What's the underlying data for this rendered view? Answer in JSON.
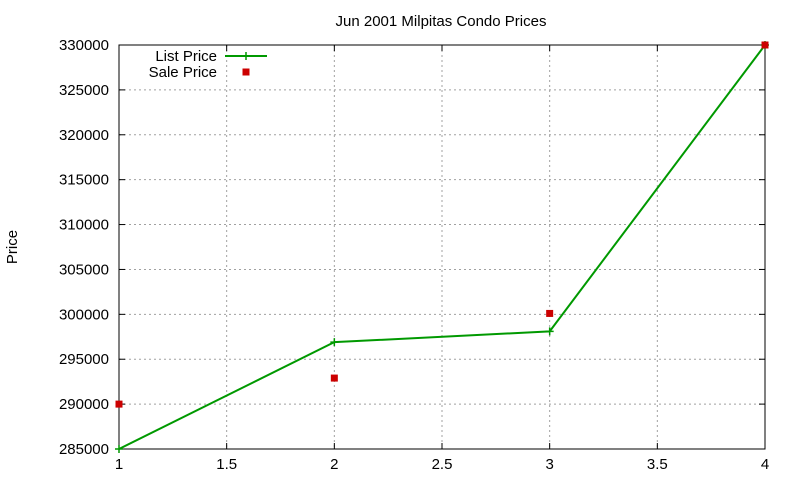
{
  "chart_data": {
    "type": "line",
    "title": "Jun 2001 Milpitas Condo Prices",
    "xlabel": "",
    "ylabel": "Price",
    "xlim": [
      1,
      4
    ],
    "ylim": [
      285000,
      330000
    ],
    "x_ticks": [
      1,
      1.5,
      2,
      2.5,
      3,
      3.5,
      4
    ],
    "x_tick_labels": [
      "1",
      "1.5",
      "2",
      "2.5",
      "3",
      "3.5",
      "4"
    ],
    "y_ticks": [
      285000,
      290000,
      295000,
      300000,
      305000,
      310000,
      315000,
      320000,
      325000,
      330000
    ],
    "y_tick_labels": [
      "285000",
      "290000",
      "295000",
      "300000",
      "305000",
      "310000",
      "315000",
      "320000",
      "325000",
      "330000"
    ],
    "grid": true,
    "legend_position": "top-left",
    "series": [
      {
        "name": "List Price",
        "style": "linespoints",
        "marker": "plus",
        "color": "#009900",
        "x": [
          1,
          2,
          3,
          4
        ],
        "values": [
          285000,
          296900,
          298100,
          330000
        ]
      },
      {
        "name": "Sale Price",
        "style": "points",
        "marker": "square",
        "color": "#cc0000",
        "x": [
          1,
          2,
          3,
          4
        ],
        "values": [
          290000,
          292900,
          300100,
          330000
        ]
      }
    ]
  }
}
